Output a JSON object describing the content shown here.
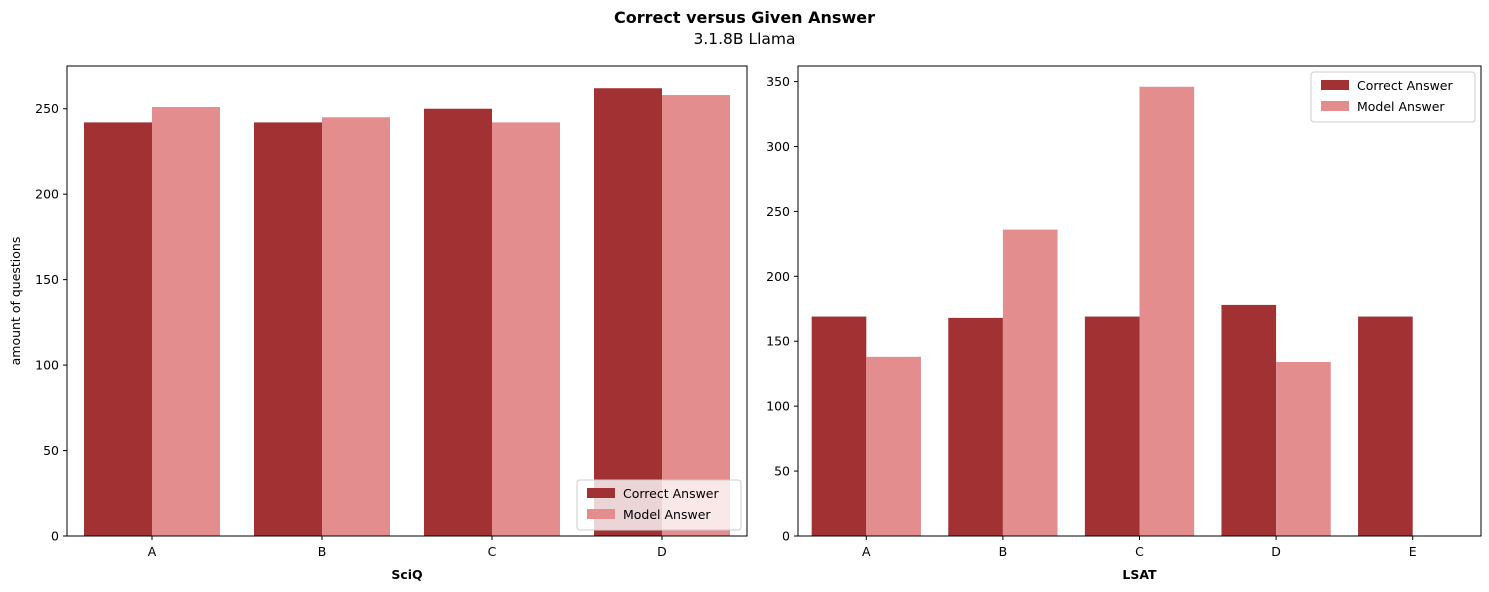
{
  "figure": {
    "title": "Correct versus Given Answer",
    "subtitle": "3.1.8B Llama"
  },
  "colors": {
    "correct": "#a13133",
    "model": "#e38d8f"
  },
  "chart_data": [
    {
      "type": "bar",
      "xlabel": "SciQ",
      "ylabel": "amount of questions",
      "categories": [
        "A",
        "B",
        "C",
        "D"
      ],
      "ylim": [
        0,
        275
      ],
      "yticks": [
        0,
        50,
        100,
        150,
        200,
        250
      ],
      "legend_position": "lower-right",
      "series": [
        {
          "name": "Correct Answer",
          "values": [
            242,
            242,
            250,
            262
          ]
        },
        {
          "name": "Model Answer",
          "values": [
            251,
            245,
            242,
            258
          ]
        }
      ]
    },
    {
      "type": "bar",
      "xlabel": "LSAT",
      "ylabel": "",
      "categories": [
        "A",
        "B",
        "C",
        "D",
        "E"
      ],
      "ylim": [
        0,
        362
      ],
      "yticks": [
        0,
        50,
        100,
        150,
        200,
        250,
        300,
        350
      ],
      "legend_position": "upper-right",
      "series": [
        {
          "name": "Correct Answer",
          "values": [
            169,
            168,
            169,
            178,
            169
          ]
        },
        {
          "name": "Model Answer",
          "values": [
            138,
            236,
            346,
            134,
            0
          ]
        }
      ]
    }
  ]
}
